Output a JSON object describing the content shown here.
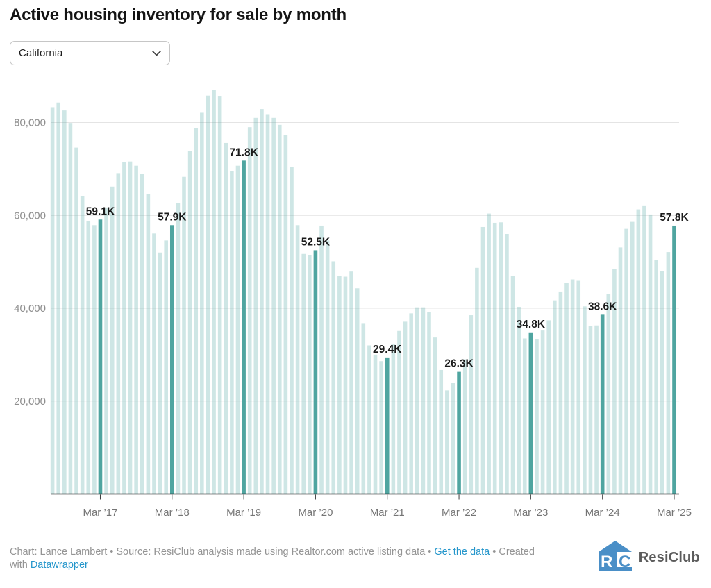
{
  "header": {
    "title": "Active housing inventory for sale by month"
  },
  "dropdown": {
    "value": "California",
    "icon": "chevron-down-icon"
  },
  "colors": {
    "bar_light": "#4FA5A0",
    "bar_light_opacity": 0.28,
    "bar_highlight": "#4FA5A0",
    "link_blue": "#2596cb",
    "logo_blue": "#4a8fc7"
  },
  "chart_data": {
    "type": "bar",
    "title": "Active housing inventory for sale by month",
    "region": "California",
    "unit": "listings (values in thousands)",
    "ylim": [
      0,
      90000
    ],
    "grid": "on",
    "y_ticks": [
      {
        "value": 20000,
        "label": "20,000"
      },
      {
        "value": 40000,
        "label": "40,000"
      },
      {
        "value": 60000,
        "label": "60,000"
      },
      {
        "value": 80000,
        "label": "80,000"
      }
    ],
    "x_ticks": [
      {
        "index": 8,
        "label": "Mar ’17"
      },
      {
        "index": 20,
        "label": "Mar ’18"
      },
      {
        "index": 32,
        "label": "Mar ’19"
      },
      {
        "index": 44,
        "label": "Mar ’20"
      },
      {
        "index": 56,
        "label": "Mar ’21"
      },
      {
        "index": 68,
        "label": "Mar ’22"
      },
      {
        "index": 80,
        "label": "Mar ’23"
      },
      {
        "index": 92,
        "label": "Mar ’24"
      },
      {
        "index": 104,
        "label": "Mar ’25"
      }
    ],
    "points": [
      {
        "m": "Jul 2016",
        "v": 83.3
      },
      {
        "m": "Aug 2016",
        "v": 84.3
      },
      {
        "m": "Sep 2016",
        "v": 82.6
      },
      {
        "m": "Oct 2016",
        "v": 79.9
      },
      {
        "m": "Nov 2016",
        "v": 74.6
      },
      {
        "m": "Dec 2016",
        "v": 64.1
      },
      {
        "m": "Jan 2017",
        "v": 58.8
      },
      {
        "m": "Feb 2017",
        "v": 57.9
      },
      {
        "m": "Mar 2017",
        "v": 59.1,
        "highlight": true,
        "label": "59.1K"
      },
      {
        "m": "Apr 2017",
        "v": 61.7
      },
      {
        "m": "May 2017",
        "v": 66.2
      },
      {
        "m": "Jun 2017",
        "v": 69.1
      },
      {
        "m": "Jul 2017",
        "v": 71.4
      },
      {
        "m": "Aug 2017",
        "v": 71.6
      },
      {
        "m": "Sep 2017",
        "v": 70.7
      },
      {
        "m": "Oct 2017",
        "v": 68.9
      },
      {
        "m": "Nov 2017",
        "v": 64.6
      },
      {
        "m": "Dec 2017",
        "v": 56.1
      },
      {
        "m": "Jan 2018",
        "v": 52.0
      },
      {
        "m": "Feb 2018",
        "v": 54.6
      },
      {
        "m": "Mar 2018",
        "v": 57.9,
        "highlight": true,
        "label": "57.9K"
      },
      {
        "m": "Apr 2018",
        "v": 62.6
      },
      {
        "m": "May 2018",
        "v": 68.3
      },
      {
        "m": "Jun 2018",
        "v": 73.8
      },
      {
        "m": "Jul 2018",
        "v": 78.8
      },
      {
        "m": "Aug 2018",
        "v": 82.1
      },
      {
        "m": "Sep 2018",
        "v": 85.8
      },
      {
        "m": "Oct 2018",
        "v": 87.0
      },
      {
        "m": "Nov 2018",
        "v": 85.6
      },
      {
        "m": "Dec 2018",
        "v": 75.6
      },
      {
        "m": "Jan 2019",
        "v": 69.6
      },
      {
        "m": "Feb 2019",
        "v": 70.7
      },
      {
        "m": "Mar 2019",
        "v": 71.8,
        "highlight": true,
        "label": "71.8K"
      },
      {
        "m": "Apr 2019",
        "v": 79.0
      },
      {
        "m": "May 2019",
        "v": 81.0
      },
      {
        "m": "Jun 2019",
        "v": 82.9
      },
      {
        "m": "Jul 2019",
        "v": 81.8
      },
      {
        "m": "Aug 2019",
        "v": 81.0
      },
      {
        "m": "Sep 2019",
        "v": 79.5
      },
      {
        "m": "Oct 2019",
        "v": 77.3
      },
      {
        "m": "Nov 2019",
        "v": 70.5
      },
      {
        "m": "Dec 2019",
        "v": 57.9
      },
      {
        "m": "Jan 2020",
        "v": 51.7
      },
      {
        "m": "Feb 2020",
        "v": 51.4
      },
      {
        "m": "Mar 2020",
        "v": 52.5,
        "highlight": true,
        "label": "52.5K"
      },
      {
        "m": "Apr 2020",
        "v": 57.8
      },
      {
        "m": "May 2020",
        "v": 54.6
      },
      {
        "m": "Jun 2020",
        "v": 50.1
      },
      {
        "m": "Jul 2020",
        "v": 46.9
      },
      {
        "m": "Aug 2020",
        "v": 46.8
      },
      {
        "m": "Sep 2020",
        "v": 47.9
      },
      {
        "m": "Oct 2020",
        "v": 44.3
      },
      {
        "m": "Nov 2020",
        "v": 36.8
      },
      {
        "m": "Dec 2020",
        "v": 32.0
      },
      {
        "m": "Jan 2021",
        "v": 30.0
      },
      {
        "m": "Feb 2021",
        "v": 28.6
      },
      {
        "m": "Mar 2021",
        "v": 29.4,
        "highlight": true,
        "label": "29.4K"
      },
      {
        "m": "Apr 2021",
        "v": 32.2
      },
      {
        "m": "May 2021",
        "v": 35.1
      },
      {
        "m": "Jun 2021",
        "v": 37.1
      },
      {
        "m": "Jul 2021",
        "v": 38.9
      },
      {
        "m": "Aug 2021",
        "v": 40.2
      },
      {
        "m": "Sep 2021",
        "v": 40.2
      },
      {
        "m": "Oct 2021",
        "v": 39.1
      },
      {
        "m": "Nov 2021",
        "v": 33.7
      },
      {
        "m": "Dec 2021",
        "v": 26.7
      },
      {
        "m": "Jan 2022",
        "v": 22.3
      },
      {
        "m": "Feb 2022",
        "v": 23.9
      },
      {
        "m": "Mar 2022",
        "v": 26.3,
        "highlight": true,
        "label": "26.3K"
      },
      {
        "m": "Apr 2022",
        "v": 29.0
      },
      {
        "m": "May 2022",
        "v": 38.5
      },
      {
        "m": "Jun 2022",
        "v": 48.7
      },
      {
        "m": "Jul 2022",
        "v": 57.5
      },
      {
        "m": "Aug 2022",
        "v": 60.4
      },
      {
        "m": "Sep 2022",
        "v": 58.4
      },
      {
        "m": "Oct 2022",
        "v": 58.5
      },
      {
        "m": "Nov 2022",
        "v": 56.0
      },
      {
        "m": "Dec 2022",
        "v": 46.9
      },
      {
        "m": "Jan 2023",
        "v": 40.3
      },
      {
        "m": "Feb 2023",
        "v": 33.5
      },
      {
        "m": "Mar 2023",
        "v": 34.8,
        "highlight": true,
        "label": "34.8K"
      },
      {
        "m": "Apr 2023",
        "v": 33.3
      },
      {
        "m": "May 2023",
        "v": 35.2
      },
      {
        "m": "Jun 2023",
        "v": 37.4
      },
      {
        "m": "Jul 2023",
        "v": 41.7
      },
      {
        "m": "Aug 2023",
        "v": 43.6
      },
      {
        "m": "Sep 2023",
        "v": 45.5
      },
      {
        "m": "Oct 2023",
        "v": 46.2
      },
      {
        "m": "Nov 2023",
        "v": 45.9
      },
      {
        "m": "Dec 2023",
        "v": 40.4
      },
      {
        "m": "Jan 2024",
        "v": 36.2
      },
      {
        "m": "Feb 2024",
        "v": 36.3
      },
      {
        "m": "Mar 2024",
        "v": 38.6,
        "highlight": true,
        "label": "38.6K"
      },
      {
        "m": "Apr 2024",
        "v": 43.0
      },
      {
        "m": "May 2024",
        "v": 48.5
      },
      {
        "m": "Jun 2024",
        "v": 53.1
      },
      {
        "m": "Jul 2024",
        "v": 57.1
      },
      {
        "m": "Aug 2024",
        "v": 58.6
      },
      {
        "m": "Sep 2024",
        "v": 61.3
      },
      {
        "m": "Oct 2024",
        "v": 62.0
      },
      {
        "m": "Nov 2024",
        "v": 60.2
      },
      {
        "m": "Dec 2024",
        "v": 50.4
      },
      {
        "m": "Jan 2025",
        "v": 48.0
      },
      {
        "m": "Feb 2025",
        "v": 52.1
      },
      {
        "m": "Mar 2025",
        "v": 57.8,
        "highlight": true,
        "label": "57.8K"
      }
    ]
  },
  "footer": {
    "line1_prefix": "Chart: Lance Lambert • Source: ResiClub analysis made using Realtor.com active listing data • ",
    "get_data_label": "Get the data",
    "line1_suffix": " • Created",
    "line2_prefix": "with ",
    "datawrapper_label": "Datawrapper"
  },
  "logo": {
    "text": "ResiClub",
    "icon": "resiclub-house-icon"
  }
}
